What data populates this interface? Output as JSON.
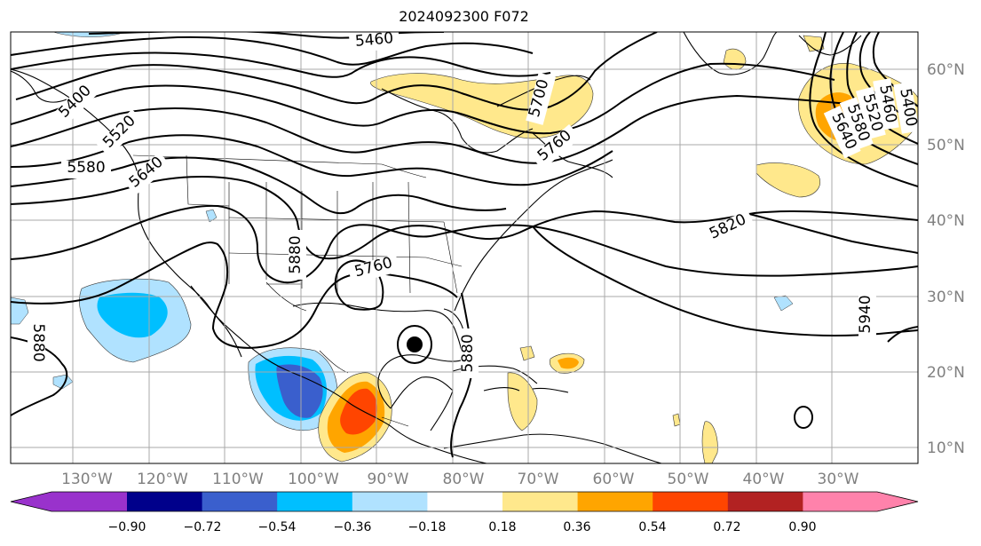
{
  "title": "2024092300 F072",
  "lat_labels": [
    "60°N",
    "50°N",
    "40°N",
    "30°N",
    "20°N",
    "10°N"
  ],
  "lon_labels": [
    "130°W",
    "120°W",
    "110°W",
    "100°W",
    "90°W",
    "80°W",
    "70°W",
    "60°W",
    "50°W",
    "40°W",
    "30°W"
  ],
  "contour_labels": [
    "5460",
    "5400",
    "5520",
    "5580",
    "5640",
    "5700",
    "5760",
    "5820",
    "5880",
    "5880",
    "5760",
    "5880",
    "5940",
    "5400",
    "5460",
    "5520",
    "5580",
    "5640"
  ],
  "colorbar": {
    "labels": [
      "−0.90",
      "−0.72",
      "−0.54",
      "−0.36",
      "−0.18",
      "0.18",
      "0.36",
      "0.54",
      "0.72",
      "0.90"
    ],
    "colors": [
      "#9932cc",
      "#00008b",
      "#3a5fcd",
      "#00bfff",
      "#b0e2ff",
      "#ffffff",
      "#ffe88c",
      "#ffa500",
      "#ff4500",
      "#b22222",
      "#ff82ab"
    ]
  },
  "colors": {
    "light_blue": "#b0e2ff",
    "sky_blue": "#00bfff",
    "royal_blue": "#3a5fcd",
    "yellow": "#ffe88c",
    "orange": "#ffa500",
    "red_orange": "#ff4500",
    "contour": "#000000",
    "grid": "#a9a9a9"
  }
}
